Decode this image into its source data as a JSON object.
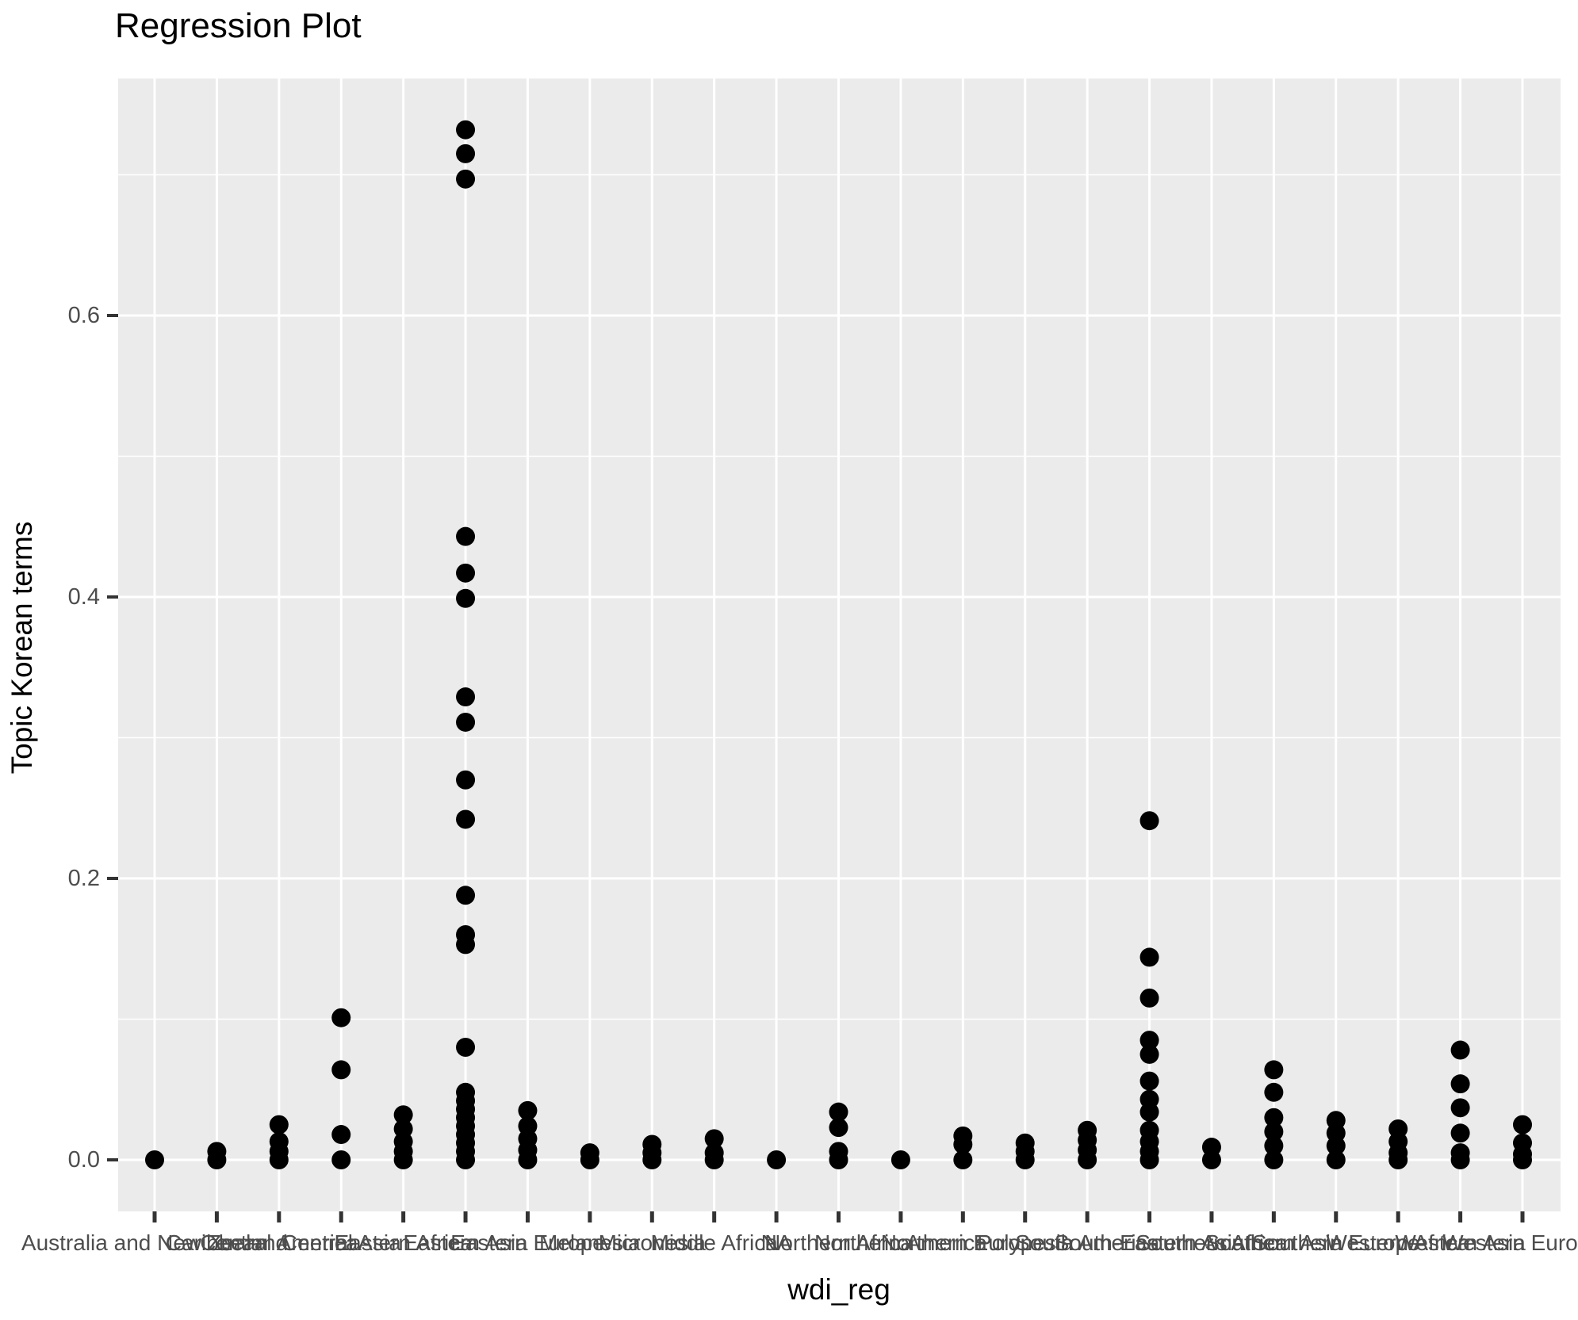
{
  "title": "Regression Plot",
  "x_axis": {
    "label": "wdi_reg"
  },
  "y_axis": {
    "label": "Topic Korean terms"
  },
  "colors": {
    "background": "#ffffff",
    "panel_background": "#ebebeb",
    "gridline": "#ffffff",
    "point": "#000000",
    "tick_mark": "#333333",
    "axis_text": "#4d4d4d",
    "title_text": "#000000"
  },
  "chart_data": {
    "type": "scatter",
    "subtype": "strip-plot-by-category",
    "title": "Regression Plot",
    "xlabel": "wdi_reg",
    "ylabel": "Topic Korean terms",
    "ylim": [
      -0.037,
      0.769
    ],
    "yticks": [
      0.0,
      0.2,
      0.4,
      0.6
    ],
    "ytick_labels": [
      "0.0",
      "0.2",
      "0.4",
      "0.6"
    ],
    "minor_yticks": [
      0.1,
      0.3,
      0.5,
      0.7
    ],
    "grid": "on",
    "legend_position": "none",
    "point_color": "#000000",
    "categories": [
      "Australia and New Zealand",
      "Caribbean",
      "Central America",
      "Central Asia",
      "Eastern Africa",
      "Eastern Asia",
      "Eastern Europe",
      "Melanesia",
      "Micronesia",
      "Middle Africa",
      "NA",
      "Northern Africa",
      "Northern America",
      "Northern Europe",
      "Polynesia",
      "South America",
      "South-Eastern Asia",
      "Southern Africa",
      "Southern Asia",
      "Southern Europe",
      "Western Africa",
      "Western Asia",
      "Western Europe"
    ],
    "values": [
      [
        0
      ],
      [
        0.006,
        0
      ],
      [
        0.025,
        0.013,
        0.006,
        0
      ],
      [
        0.101,
        0.064,
        0.018,
        0
      ],
      [
        0.032,
        0.022,
        0.013,
        0.006,
        0
      ],
      [
        0.732,
        0.715,
        0.697,
        0.443,
        0.417,
        0.399,
        0.329,
        0.311,
        0.27,
        0.242,
        0.188,
        0.16,
        0.153,
        0.08,
        0.048,
        0.042,
        0.036,
        0.03,
        0.024,
        0.018,
        0.012,
        0.006,
        0
      ],
      [
        0.035,
        0.024,
        0.015,
        0.007,
        0
      ],
      [
        0.005,
        0
      ],
      [
        0.011,
        0.005,
        0
      ],
      [
        0.015,
        0.005,
        0
      ],
      [
        0
      ],
      [
        0.034,
        0.023,
        0.006,
        0
      ],
      [
        0
      ],
      [
        0.017,
        0.011,
        0
      ],
      [
        0.012,
        0.006,
        0
      ],
      [
        0.021,
        0.014,
        0.007,
        0
      ],
      [
        0.241,
        0.144,
        0.115,
        0.085,
        0.075,
        0.056,
        0.043,
        0.034,
        0.021,
        0.013,
        0.006,
        0
      ],
      [
        0.009,
        0
      ],
      [
        0.064,
        0.048,
        0.03,
        0.02,
        0.01,
        0
      ],
      [
        0.028,
        0.019,
        0.01,
        0
      ],
      [
        0.022,
        0.013,
        0.005,
        0
      ],
      [
        0.078,
        0.054,
        0.037,
        0.019,
        0.005,
        0
      ],
      [
        0.025,
        0.012,
        0.004,
        0
      ]
    ]
  }
}
